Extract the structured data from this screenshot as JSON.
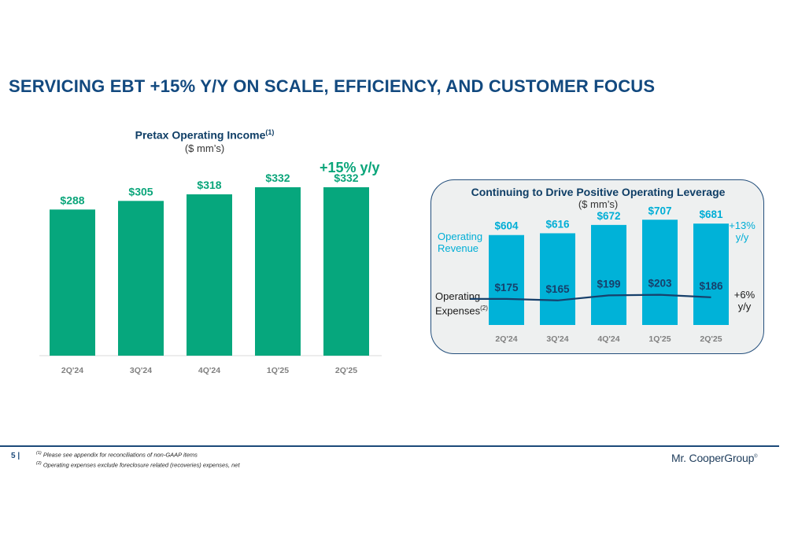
{
  "slide": {
    "title": "SERVICING EBT +15% Y/Y ON SCALE, EFFICIENCY, AND CUSTOMER FOCUS",
    "page_number": "5  |",
    "footnote_1_marker": "(1)",
    "footnote_1": " Please see appendix for reconciliations of non-GAAP items",
    "footnote_2_marker": "(2)",
    "footnote_2": " Operating expenses exclude foreclosure related (recoveries) expenses, net",
    "logo_text": "Mr. CooperGroup",
    "logo_mark": "®"
  },
  "colors": {
    "title": "#12497f",
    "green_bar": "#06a77d",
    "green_text": "#0aa57a",
    "blue_bar": "#00b2d8",
    "blue_text": "#00aed6",
    "navy": "#17406b",
    "axis_tick": "#808080"
  },
  "chart_data": [
    {
      "type": "bar",
      "title": "Pretax Operating Income",
      "title_superscript": "(1)",
      "subtitle": "($ mm’s)",
      "growth_label": "+15% y/y",
      "categories": [
        "2Q'24",
        "3Q'24",
        "4Q'24",
        "1Q'25",
        "2Q'25"
      ],
      "values": [
        288,
        305,
        318,
        332,
        332
      ],
      "value_labels": [
        "$288",
        "$305",
        "$318",
        "$332",
        "$332"
      ],
      "ylim": [
        0,
        345
      ]
    },
    {
      "type": "bar",
      "title": "Continuing to Drive Positive Operating Leverage",
      "subtitle": "($ mm’s)",
      "categories": [
        "2Q'24",
        "3Q'24",
        "4Q'24",
        "1Q'25",
        "2Q'25"
      ],
      "ylim": [
        0,
        740
      ],
      "series": [
        {
          "name": "Operating Revenue",
          "label_lines": [
            "Operating",
            "Revenue"
          ],
          "type": "bar",
          "values": [
            604,
            616,
            672,
            707,
            681
          ],
          "value_labels": [
            "$604",
            "$616",
            "$672",
            "$707",
            "$681"
          ],
          "growth_label_lines": [
            "+13%",
            "y/y"
          ]
        },
        {
          "name": "Operating Expenses",
          "label_lines": [
            "Operating",
            "Expenses"
          ],
          "label_superscript": "(2)",
          "type": "line",
          "values": [
            175,
            165,
            199,
            203,
            186
          ],
          "value_labels": [
            "$175",
            "$165",
            "$199",
            "$203",
            "$186"
          ],
          "growth_label_lines": [
            "+6%",
            "y/y"
          ]
        }
      ]
    }
  ]
}
